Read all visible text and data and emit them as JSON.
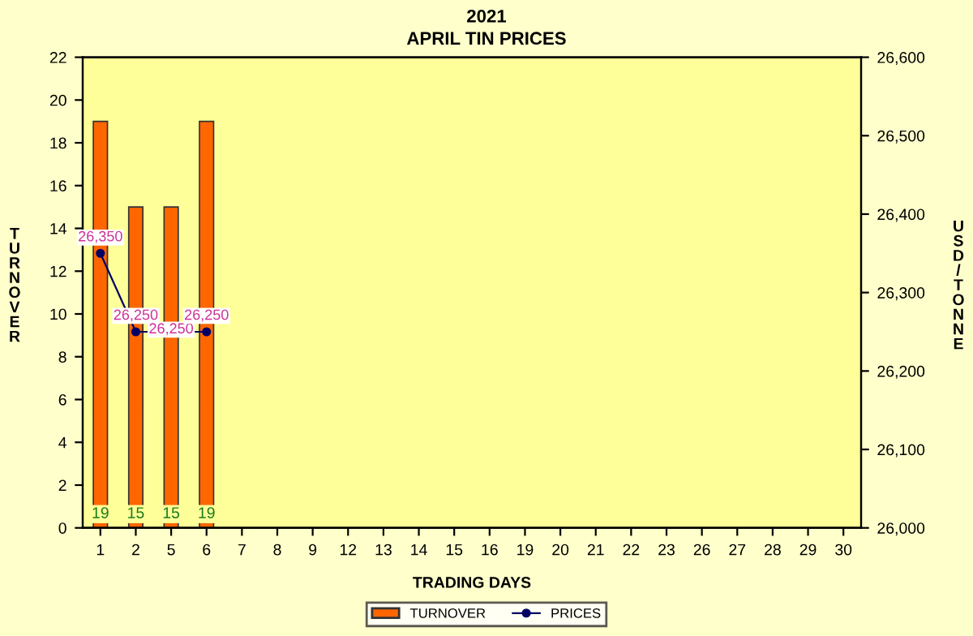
{
  "chart_data": {
    "type": "bar",
    "title": "2021",
    "subtitle": "APRIL TIN PRICES",
    "xlabel": "TRADING DAYS",
    "ylabel": "TURNOVER",
    "y2label": "USD / TONNE",
    "categories": [
      "1",
      "2",
      "5",
      "6",
      "7",
      "8",
      "9",
      "12",
      "13",
      "14",
      "15",
      "16",
      "19",
      "20",
      "21",
      "22",
      "23",
      "26",
      "27",
      "28",
      "29",
      "30"
    ],
    "series": [
      {
        "name": "TURNOVER",
        "color": "#ff6600",
        "values": [
          19,
          15,
          15,
          19,
          null,
          null,
          null,
          null,
          null,
          null,
          null,
          null,
          null,
          null,
          null,
          null,
          null,
          null,
          null,
          null,
          null,
          null
        ],
        "value_labels": [
          "19",
          "15",
          "15",
          "19",
          null,
          null,
          null,
          null,
          null,
          null,
          null,
          null,
          null,
          null,
          null,
          null,
          null,
          null,
          null,
          null,
          null,
          null
        ]
      },
      {
        "name": "PRICES",
        "type": "line",
        "axis": "y2",
        "color": "#000066",
        "marker": "circle",
        "values": [
          26350,
          26250,
          26250,
          26250,
          null,
          null,
          null,
          null,
          null,
          null,
          null,
          null,
          null,
          null,
          null,
          null,
          null,
          null,
          null,
          null,
          null,
          null
        ],
        "value_labels": [
          "26,350",
          "26,250",
          "26,250",
          "26,250",
          null,
          null,
          null,
          null,
          null,
          null,
          null,
          null,
          null,
          null,
          null,
          null,
          null,
          null,
          null,
          null,
          null,
          null
        ]
      }
    ],
    "ylim": [
      0,
      22
    ],
    "yticks": [
      0,
      2,
      4,
      6,
      8,
      10,
      12,
      14,
      16,
      18,
      20,
      22
    ],
    "y2lim": [
      26000,
      26600
    ],
    "y2ticks": [
      {
        "value": 26000,
        "label": "26,000"
      },
      {
        "value": 26100,
        "label": "26,100"
      },
      {
        "value": 26200,
        "label": "26,200"
      },
      {
        "value": 26300,
        "label": "26,300"
      },
      {
        "value": 26400,
        "label": "26,400"
      },
      {
        "value": 26500,
        "label": "26,500"
      },
      {
        "value": 26600,
        "label": "26,600"
      }
    ],
    "legend": "bottom",
    "grid": false
  }
}
